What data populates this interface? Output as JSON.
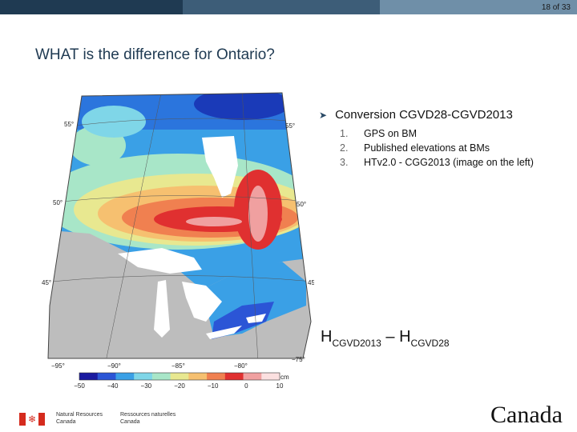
{
  "header": {
    "slide_number": "18 of 33"
  },
  "title": "WHAT is the difference for Ontario?",
  "bullet": {
    "main": "Conversion CGVD28-CGVD2013",
    "items": [
      {
        "num": "1.",
        "text": "GPS on BM"
      },
      {
        "num": "2.",
        "text": "Published elevations at BMs"
      },
      {
        "num": "3.",
        "text": "HTv2.0  - CGG2013 (image on the left)"
      }
    ]
  },
  "formula": {
    "h1": "H",
    "sub1": "CGVD2013",
    "minus": " – ",
    "h2": "H",
    "sub2": "CGVD28"
  },
  "map": {
    "lat_labels_left": [
      "55°",
      "50°",
      "45°"
    ],
    "lat_labels_right": [
      "55°",
      "50°",
      "45°"
    ],
    "lon_labels": [
      "−95°",
      "−90°",
      "−85°",
      "−80°",
      "−75°"
    ],
    "colorbar": {
      "unit": "cm",
      "ticks": [
        "−50",
        "−40",
        "−30",
        "−20",
        "−10",
        "0",
        "10"
      ],
      "colors": [
        "#1a1aa0",
        "#2b55d6",
        "#3aa0e6",
        "#7fd6e8",
        "#a8e6c8",
        "#e8e890",
        "#f6c070",
        "#f08050",
        "#e03030",
        "#f0a0a0",
        "#fbe0e0"
      ]
    }
  },
  "footer": {
    "dept_en_1": "Natural Resources",
    "dept_en_2": "Canada",
    "dept_fr_1": "Ressources naturelles",
    "dept_fr_2": "Canada",
    "wordmark": "Canada"
  },
  "colors": {
    "title": "#1f3a52",
    "bar_dark": "#1f3a52",
    "bar_mid": "#3d5d78",
    "bar_light": "#6f8fa8"
  }
}
